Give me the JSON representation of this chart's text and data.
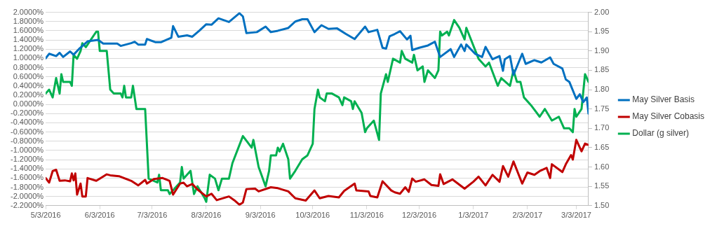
{
  "chart_data": {
    "type": "line",
    "xlim": [
      "2016-05-03",
      "2017-03-10"
    ],
    "xticks": [
      {
        "value": "2016-05-03",
        "label": "5/3/2016"
      },
      {
        "value": "2016-06-03",
        "label": "6/3/2016"
      },
      {
        "value": "2016-07-03",
        "label": "7/3/2016"
      },
      {
        "value": "2016-08-03",
        "label": "8/3/2016"
      },
      {
        "value": "2016-09-03",
        "label": "9/3/2016"
      },
      {
        "value": "2016-10-03",
        "label": "10/3/2016"
      },
      {
        "value": "2016-11-03",
        "label": "11/3/2016"
      },
      {
        "value": "2016-12-03",
        "label": "12/3/2016"
      },
      {
        "value": "2017-01-03",
        "label": "1/3/2017"
      },
      {
        "value": "2017-02-03",
        "label": "2/3/2017"
      },
      {
        "value": "2017-03-03",
        "label": "3/3/2017"
      }
    ],
    "ylim": [
      -2.2,
      2.0
    ],
    "yticks": [
      {
        "value": -2.2,
        "label": "-2.2000%"
      },
      {
        "value": -2.0,
        "label": "-2.0000%"
      },
      {
        "value": -1.8,
        "label": "-1.8000%"
      },
      {
        "value": -1.6,
        "label": "-1.6000%"
      },
      {
        "value": -1.4,
        "label": "-1.4000%"
      },
      {
        "value": -1.2,
        "label": "-1.2000%"
      },
      {
        "value": -1.0,
        "label": "-1.0000%"
      },
      {
        "value": -0.8,
        "label": "-0.8000%"
      },
      {
        "value": -0.6,
        "label": "-0.6000%"
      },
      {
        "value": -0.4,
        "label": "-0.4000%"
      },
      {
        "value": -0.2,
        "label": "-0.2000%"
      },
      {
        "value": 0,
        "label": "0.0000%"
      },
      {
        "value": 0.2,
        "label": "0.2000%"
      },
      {
        "value": 0.4,
        "label": "0.4000%"
      },
      {
        "value": 0.6,
        "label": "0.6000%"
      },
      {
        "value": 0.8,
        "label": "0.8000%"
      },
      {
        "value": 1.0,
        "label": "1.0000%"
      },
      {
        "value": 1.2,
        "label": "1.2000%"
      },
      {
        "value": 1.4,
        "label": "1.4000%"
      },
      {
        "value": 1.6,
        "label": "1.6000%"
      },
      {
        "value": 1.8,
        "label": "1.8000%"
      },
      {
        "value": 2.0,
        "label": "2.0000%"
      }
    ],
    "y2lim": [
      1.5,
      2.0
    ],
    "y2ticks": [
      {
        "value": 1.5,
        "label": "1.50"
      },
      {
        "value": 1.55,
        "label": "1.55"
      },
      {
        "value": 1.6,
        "label": "1.60"
      },
      {
        "value": 1.65,
        "label": "1.65"
      },
      {
        "value": 1.7,
        "label": "1.70"
      },
      {
        "value": 1.75,
        "label": "1.75"
      },
      {
        "value": 1.8,
        "label": "1.80"
      },
      {
        "value": 1.85,
        "label": "1.85"
      },
      {
        "value": 1.9,
        "label": "1.90"
      },
      {
        "value": 1.95,
        "label": "1.95"
      },
      {
        "value": 2.0,
        "label": "2.00"
      }
    ],
    "grid": "y",
    "legend": "right",
    "marker": "none",
    "line_style": "solid",
    "series": [
      {
        "name": "May Silver Basis",
        "color": "#0070c0",
        "x": [
          "2016-05-03",
          "2016-05-05",
          "2016-05-09",
          "2016-05-11",
          "2016-05-13",
          "2016-05-17",
          "2016-05-19",
          "2016-05-22",
          "2016-05-27",
          "2016-06-02",
          "2016-06-05",
          "2016-06-09",
          "2016-06-13",
          "2016-06-15",
          "2016-06-21",
          "2016-06-23",
          "2016-06-25",
          "2016-06-29",
          "2016-06-30",
          "2016-07-05",
          "2016-07-08",
          "2016-07-14",
          "2016-07-15",
          "2016-07-18",
          "2016-07-23",
          "2016-07-26",
          "2016-07-30",
          "2016-08-03",
          "2016-08-06",
          "2016-08-10",
          "2016-08-16",
          "2016-08-22",
          "2016-08-24",
          "2016-08-26",
          "2016-09-01",
          "2016-09-06",
          "2016-09-09",
          "2016-09-13",
          "2016-09-19",
          "2016-09-23",
          "2016-09-27",
          "2016-09-30",
          "2016-10-04",
          "2016-10-08",
          "2016-10-12",
          "2016-10-17",
          "2016-10-22",
          "2016-10-27",
          "2016-11-02",
          "2016-11-04",
          "2016-11-09",
          "2016-11-12",
          "2016-11-14",
          "2016-11-16",
          "2016-11-19",
          "2016-11-22",
          "2016-11-26",
          "2016-11-28",
          "2016-11-29",
          "2016-12-03",
          "2016-12-08",
          "2016-12-12",
          "2016-12-15",
          "2016-12-21",
          "2016-12-23",
          "2016-12-27",
          "2016-12-29",
          "2016-12-30",
          "2017-01-04",
          "2017-01-08",
          "2017-01-10",
          "2017-01-14",
          "2017-01-18",
          "2017-01-20",
          "2017-01-21",
          "2017-01-24",
          "2017-01-26",
          "2017-01-31",
          "2017-02-02",
          "2017-02-07",
          "2017-02-11",
          "2017-02-16",
          "2017-02-18",
          "2017-02-23",
          "2017-02-25",
          "2017-02-27",
          "2017-03-03",
          "2017-03-05",
          "2017-03-07",
          "2017-03-09",
          "2017-03-10"
        ],
        "values": [
          1.0,
          1.1,
          1.05,
          1.12,
          1.03,
          1.15,
          1.08,
          1.2,
          1.37,
          1.4,
          1.32,
          1.32,
          1.32,
          1.27,
          1.33,
          1.36,
          1.3,
          1.3,
          1.42,
          1.35,
          1.35,
          1.45,
          1.7,
          1.47,
          1.5,
          1.47,
          1.6,
          1.74,
          1.73,
          1.87,
          1.79,
          1.98,
          1.91,
          1.55,
          1.57,
          1.69,
          1.57,
          1.6,
          1.66,
          1.8,
          1.85,
          1.85,
          1.57,
          1.72,
          1.64,
          1.65,
          1.53,
          1.42,
          1.69,
          1.57,
          1.62,
          1.23,
          1.21,
          1.48,
          1.53,
          1.59,
          1.41,
          1.49,
          1.18,
          1.23,
          1.28,
          1.36,
          1.03,
          1.2,
          1.03,
          1.3,
          1.16,
          1.3,
          1.1,
          1.03,
          1.25,
          0.98,
          1.05,
          0.73,
          0.98,
          1.05,
          0.64,
          1.1,
          0.88,
          0.96,
          0.91,
          1.02,
          0.88,
          0.78,
          0.54,
          0.49,
          0.12,
          0.22,
          0.05,
          0.15,
          -0.2
        ]
      },
      {
        "name": "May Silver Cobasis",
        "color": "#c00000",
        "x": [
          "2016-05-03",
          "2016-05-05",
          "2016-05-07",
          "2016-05-09",
          "2016-05-11",
          "2016-05-14",
          "2016-05-17",
          "2016-05-18",
          "2016-05-19",
          "2016-05-20",
          "2016-05-21",
          "2016-05-23",
          "2016-05-24",
          "2016-05-26",
          "2016-05-27",
          "2016-06-01",
          "2016-06-07",
          "2016-06-09",
          "2016-06-14",
          "2016-06-21",
          "2016-06-25",
          "2016-06-29",
          "2016-06-30",
          "2016-07-04",
          "2016-07-09",
          "2016-07-13",
          "2016-07-15",
          "2016-07-19",
          "2016-07-21",
          "2016-07-23",
          "2016-07-26",
          "2016-07-29",
          "2016-08-03",
          "2016-08-06",
          "2016-08-09",
          "2016-08-16",
          "2016-08-19",
          "2016-08-22",
          "2016-08-24",
          "2016-08-26",
          "2016-08-31",
          "2016-09-02",
          "2016-09-09",
          "2016-09-13",
          "2016-09-19",
          "2016-09-23",
          "2016-09-29",
          "2016-10-04",
          "2016-10-07",
          "2016-10-12",
          "2016-10-18",
          "2016-10-21",
          "2016-10-27",
          "2016-10-28",
          "2016-11-04",
          "2016-11-05",
          "2016-11-09",
          "2016-11-12",
          "2016-11-17",
          "2016-11-19",
          "2016-11-22",
          "2016-11-25",
          "2016-11-27",
          "2016-11-29",
          "2016-12-01",
          "2016-12-06",
          "2016-12-10",
          "2016-12-14",
          "2016-12-15",
          "2016-12-17",
          "2016-12-22",
          "2016-12-29",
          "2017-01-03",
          "2017-01-06",
          "2017-01-10",
          "2017-01-14",
          "2017-01-18",
          "2017-01-20",
          "2017-01-23",
          "2017-01-26",
          "2017-01-31",
          "2017-02-03",
          "2017-02-07",
          "2017-02-10",
          "2017-02-14",
          "2017-02-16",
          "2017-02-17",
          "2017-02-23",
          "2017-02-25",
          "2017-02-28",
          "2017-03-01",
          "2017-03-03",
          "2017-03-06",
          "2017-03-08",
          "2017-03-10"
        ],
        "values": [
          -1.6,
          -1.7,
          -1.45,
          -1.42,
          -1.66,
          -1.65,
          -1.67,
          -1.5,
          -1.65,
          -1.5,
          -1.96,
          -1.72,
          -2.0,
          -2.0,
          -1.6,
          -1.66,
          -1.52,
          -1.54,
          -1.56,
          -1.66,
          -1.76,
          -1.64,
          -1.72,
          -1.62,
          -1.6,
          -1.66,
          -1.96,
          -1.72,
          -1.7,
          -1.78,
          -1.73,
          -1.85,
          -2.0,
          -1.94,
          -2.08,
          -2.0,
          -2.08,
          -2.18,
          -2.13,
          -1.84,
          -1.83,
          -1.89,
          -1.8,
          -1.82,
          -1.89,
          -2.04,
          -2.09,
          -1.87,
          -2.04,
          -1.99,
          -2.02,
          -1.88,
          -1.72,
          -1.87,
          -1.89,
          -1.99,
          -2.02,
          -1.67,
          -1.87,
          -1.91,
          -1.94,
          -1.8,
          -1.9,
          -1.61,
          -1.68,
          -1.63,
          -1.75,
          -1.77,
          -1.52,
          -1.73,
          -1.63,
          -1.83,
          -1.68,
          -1.57,
          -1.76,
          -1.53,
          -1.68,
          -1.34,
          -1.57,
          -1.24,
          -1.72,
          -1.48,
          -1.53,
          -1.45,
          -1.38,
          -1.6,
          -1.3,
          -1.47,
          -1.3,
          -1.1,
          -1.2,
          -0.77,
          -1.02,
          -0.85,
          -0.88
        ]
      },
      {
        "name": "Dollar (g silver)",
        "color": "#00b050",
        "axis": "y2",
        "x": [
          "2016-05-03",
          "2016-05-05",
          "2016-05-07",
          "2016-05-09",
          "2016-05-11",
          "2016-05-12",
          "2016-05-13",
          "2016-05-17",
          "2016-05-18",
          "2016-05-19",
          "2016-05-21",
          "2016-05-23",
          "2016-05-24",
          "2016-05-26",
          "2016-06-01",
          "2016-06-02",
          "2016-06-03",
          "2016-06-07",
          "2016-06-09",
          "2016-06-11",
          "2016-06-15",
          "2016-06-16",
          "2016-06-17",
          "2016-06-18",
          "2016-06-21",
          "2016-06-22",
          "2016-06-24",
          "2016-06-29",
          "2016-07-01",
          "2016-07-06",
          "2016-07-07",
          "2016-07-08",
          "2016-07-12",
          "2016-07-13",
          "2016-07-19",
          "2016-07-20",
          "2016-07-21",
          "2016-07-25",
          "2016-07-27",
          "2016-07-29",
          "2016-08-02",
          "2016-08-03",
          "2016-08-05",
          "2016-08-08",
          "2016-08-10",
          "2016-08-12",
          "2016-08-16",
          "2016-08-18",
          "2016-08-24",
          "2016-08-29",
          "2016-08-30",
          "2016-09-02",
          "2016-09-06",
          "2016-09-08",
          "2016-09-09",
          "2016-09-12",
          "2016-09-13",
          "2016-09-14",
          "2016-09-16",
          "2016-09-19",
          "2016-09-20",
          "2016-09-23",
          "2016-09-27",
          "2016-09-30",
          "2016-10-03",
          "2016-10-04",
          "2016-10-06",
          "2016-10-07",
          "2016-10-10",
          "2016-10-11",
          "2016-10-14",
          "2016-10-18",
          "2016-10-20",
          "2016-10-21",
          "2016-10-25",
          "2016-10-26",
          "2016-10-27",
          "2016-10-31",
          "2016-11-02",
          "2016-11-03",
          "2016-11-07",
          "2016-11-10",
          "2016-11-11",
          "2016-11-14",
          "2016-11-15",
          "2016-11-18",
          "2016-11-22",
          "2016-11-23",
          "2016-11-25",
          "2016-11-29",
          "2016-11-30",
          "2016-12-02",
          "2016-12-05",
          "2016-12-06",
          "2016-12-08",
          "2016-12-12",
          "2016-12-14",
          "2016-12-15",
          "2016-12-16",
          "2016-12-19",
          "2016-12-20",
          "2016-12-23",
          "2016-12-26",
          "2016-12-29",
          "2016-12-30",
          "2017-01-06",
          "2017-01-10",
          "2017-01-12",
          "2017-01-17",
          "2017-01-19",
          "2017-01-24",
          "2017-01-26",
          "2017-01-28",
          "2017-01-30",
          "2017-02-01",
          "2017-02-05",
          "2017-02-10",
          "2017-02-13",
          "2017-02-17",
          "2017-02-21",
          "2017-02-24",
          "2017-02-27",
          "2017-03-01",
          "2017-03-02",
          "2017-03-03",
          "2017-03-06",
          "2017-03-08",
          "2017-03-10"
        ],
        "values": [
          1.79,
          1.8,
          1.78,
          1.83,
          1.79,
          1.84,
          1.82,
          1.82,
          1.81,
          1.89,
          1.88,
          1.9,
          1.92,
          1.91,
          1.95,
          1.95,
          1.9,
          1.9,
          1.8,
          1.79,
          1.79,
          1.78,
          1.81,
          1.78,
          1.78,
          1.81,
          1.75,
          1.75,
          1.57,
          1.56,
          1.58,
          1.54,
          1.54,
          1.53,
          1.56,
          1.6,
          1.57,
          1.59,
          1.53,
          1.55,
          1.52,
          1.51,
          1.58,
          1.57,
          1.54,
          1.57,
          1.57,
          1.61,
          1.68,
          1.65,
          1.67,
          1.6,
          1.55,
          1.59,
          1.63,
          1.63,
          1.65,
          1.64,
          1.66,
          1.62,
          1.57,
          1.59,
          1.62,
          1.63,
          1.66,
          1.75,
          1.8,
          1.78,
          1.77,
          1.79,
          1.79,
          1.78,
          1.76,
          1.78,
          1.77,
          1.75,
          1.77,
          1.74,
          1.69,
          1.7,
          1.72,
          1.67,
          1.79,
          1.84,
          1.82,
          1.88,
          1.87,
          1.9,
          1.88,
          1.87,
          1.89,
          1.85,
          1.86,
          1.82,
          1.85,
          1.83,
          1.85,
          1.95,
          1.94,
          1.95,
          1.94,
          1.98,
          1.96,
          1.93,
          1.96,
          1.88,
          1.86,
          1.87,
          1.81,
          1.83,
          1.81,
          1.85,
          1.82,
          1.82,
          1.78,
          1.76,
          1.73,
          1.75,
          1.72,
          1.73,
          1.7,
          1.7,
          1.69,
          1.75,
          1.73,
          1.75,
          1.84,
          1.82
        ]
      }
    ]
  }
}
